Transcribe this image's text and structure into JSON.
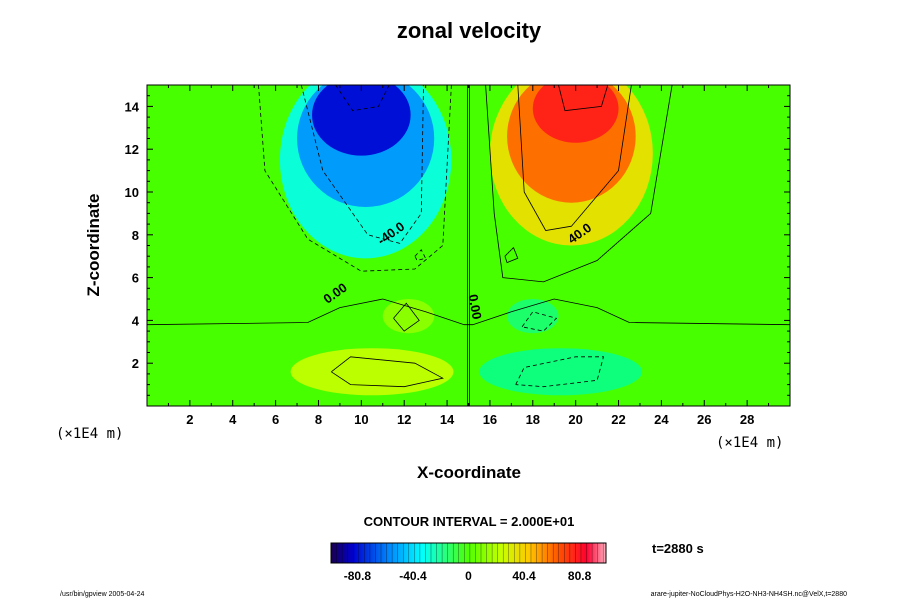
{
  "chart_data": {
    "type": "heatmap",
    "title": "zonal velocity",
    "xlabel": "X-coordinate",
    "ylabel": "Z-coordinate",
    "x_unit": "(×1E4 m)",
    "y_unit": "(×1E4 m)",
    "xlim": [
      0,
      30
    ],
    "ylim": [
      0,
      15
    ],
    "x_ticks": [
      2,
      4,
      6,
      8,
      10,
      12,
      14,
      16,
      18,
      20,
      22,
      24,
      26,
      28
    ],
    "y_ticks": [
      2,
      4,
      6,
      8,
      10,
      12,
      14
    ],
    "contour_labels": [
      {
        "text": "-40.0",
        "x": 11.5,
        "y": 7.9
      },
      {
        "text": "40.0",
        "x": 20.3,
        "y": 7.9
      },
      {
        "text": "0.00",
        "x": 8.9,
        "y": 5.1
      },
      {
        "text": "0.00",
        "x": 15.1,
        "y": 4.6
      }
    ],
    "contour_interval": "CONTOUR INTERVAL = 2.000E+01",
    "colorbar": {
      "range": [
        -100,
        100
      ],
      "ticks": [
        "-80.8",
        "-40.4",
        "0",
        "40.4",
        "80.8"
      ]
    },
    "time_label": "t=2880 s",
    "footer_left": "/usr/bin/gpview 2005-04-24",
    "footer_right": "arare-jupiter-NoCloudPhys-H2O-NH3-NH4SH.nc@VelX,t=2880"
  }
}
